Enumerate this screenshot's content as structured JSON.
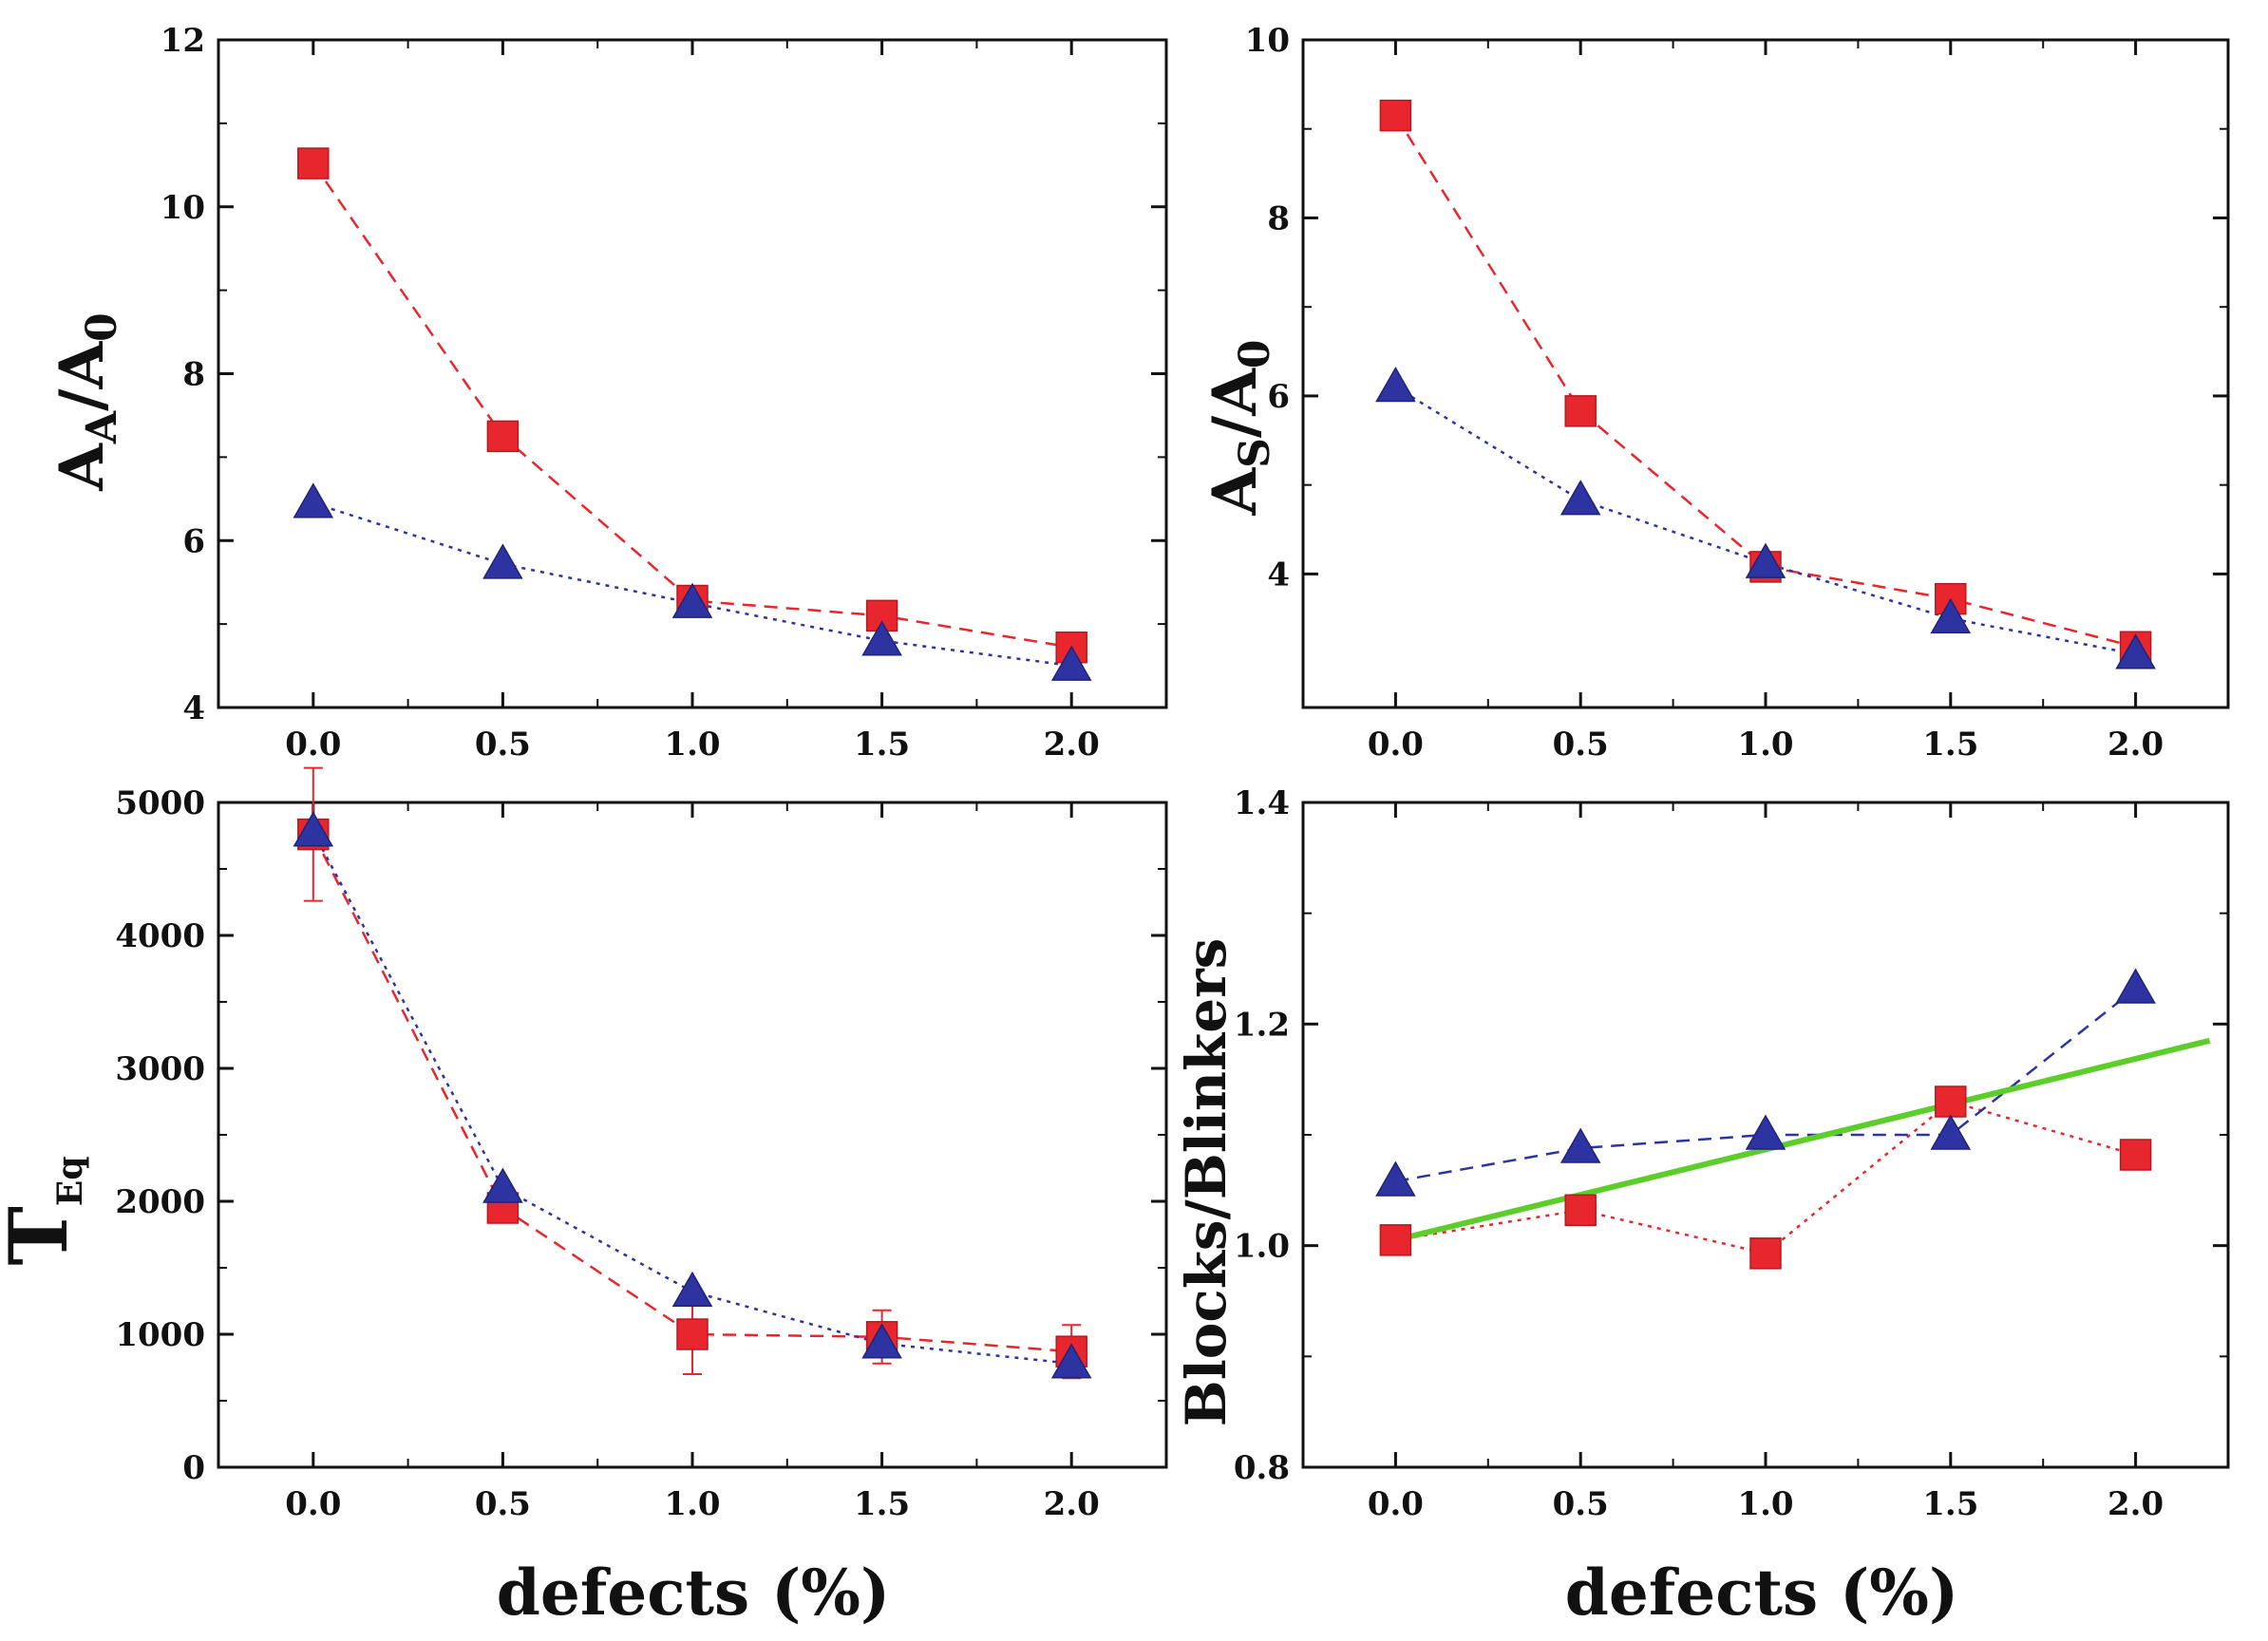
{
  "colors": {
    "red": "#e8262d",
    "blue": "#2d34a2",
    "green": "#5ccd2a",
    "axis": "#111111"
  },
  "chart_data": [
    {
      "id": "aa",
      "type": "line",
      "xlabel": "",
      "ylabel": {
        "main": "A",
        "sub": "A",
        "rest": "/A",
        "sub2": "0"
      },
      "xlim": [
        -0.25,
        2.25
      ],
      "ylim": [
        4,
        12
      ],
      "xticks": [
        "0.0",
        "0.5",
        "1.0",
        "1.5",
        "2.0"
      ],
      "yticks": [
        "4",
        "6",
        "8",
        "10",
        "12"
      ],
      "x": [
        0.0,
        0.5,
        1.0,
        1.5,
        2.0
      ],
      "series": [
        {
          "name": "squares",
          "marker": "square",
          "color": "red",
          "dash": "dashed",
          "values": [
            10.52,
            7.25,
            5.28,
            5.1,
            4.72
          ]
        },
        {
          "name": "triangles",
          "marker": "triangle",
          "color": "blue",
          "dash": "dotted",
          "values": [
            6.45,
            5.72,
            5.25,
            4.8,
            4.5
          ]
        }
      ]
    },
    {
      "id": "as",
      "type": "line",
      "xlabel": "",
      "ylabel": {
        "main": "A",
        "sub": "S",
        "rest": "/A",
        "sub2": "0"
      },
      "xlim": [
        -0.25,
        2.25
      ],
      "ylim": [
        2.5,
        10
      ],
      "xticks": [
        "0.0",
        "0.5",
        "1.0",
        "1.5",
        "2.0"
      ],
      "yticks": [
        "4",
        "6",
        "8",
        "10"
      ],
      "x": [
        0.0,
        0.5,
        1.0,
        1.5,
        2.0
      ],
      "series": [
        {
          "name": "squares",
          "marker": "square",
          "color": "red",
          "dash": "dashed",
          "values": [
            9.15,
            5.83,
            4.08,
            3.72,
            3.18
          ]
        },
        {
          "name": "triangles",
          "marker": "triangle",
          "color": "blue",
          "dash": "dotted",
          "values": [
            6.1,
            4.83,
            4.12,
            3.5,
            3.1
          ]
        }
      ]
    },
    {
      "id": "teq",
      "type": "line",
      "xlabel": "defects (%)",
      "ylabel": {
        "main": "T",
        "sub": "Eq",
        "rest": "",
        "sub2": ""
      },
      "xlim": [
        -0.25,
        2.25
      ],
      "ylim": [
        0,
        5000
      ],
      "xticks": [
        "0.0",
        "0.5",
        "1.0",
        "1.5",
        "2.0"
      ],
      "yticks": [
        "0",
        "1000",
        "2000",
        "3000",
        "4000",
        "5000"
      ],
      "x": [
        0.0,
        0.5,
        1.0,
        1.5,
        2.0
      ],
      "series": [
        {
          "name": "squares",
          "marker": "square",
          "color": "red",
          "dash": "dashed",
          "values": [
            4760,
            1950,
            1000,
            980,
            870
          ],
          "errors": [
            500,
            0,
            300,
            200,
            200
          ]
        },
        {
          "name": "triangles",
          "marker": "triangle",
          "color": "blue",
          "dash": "dotted",
          "values": [
            4780,
            2100,
            1320,
            930,
            780
          ]
        }
      ]
    },
    {
      "id": "bb",
      "type": "line",
      "xlabel": "defects (%)",
      "ylabel": {
        "main": "Blocks/Blinkers",
        "sub": "",
        "rest": "",
        "sub2": ""
      },
      "xlim": [
        -0.25,
        2.25
      ],
      "ylim": [
        0.8,
        1.4
      ],
      "xticks": [
        "0.0",
        "0.5",
        "1.0",
        "1.5",
        "2.0"
      ],
      "yticks": [
        "0.8",
        "1.0",
        "1.2",
        "1.4"
      ],
      "x": [
        0.0,
        0.5,
        1.0,
        1.5,
        2.0
      ],
      "series": [
        {
          "name": "squares",
          "marker": "square",
          "color": "red",
          "dash": "dotted",
          "values": [
            1.005,
            1.032,
            0.993,
            1.13,
            1.082
          ]
        },
        {
          "name": "triangles",
          "marker": "triangle",
          "color": "blue",
          "dash": "dashed",
          "values": [
            1.058,
            1.088,
            1.1,
            1.1,
            1.232
          ]
        }
      ],
      "fit_line": {
        "color": "green",
        "x": [
          0.0,
          2.2
        ],
        "y": [
          1.005,
          1.185
        ]
      }
    }
  ]
}
